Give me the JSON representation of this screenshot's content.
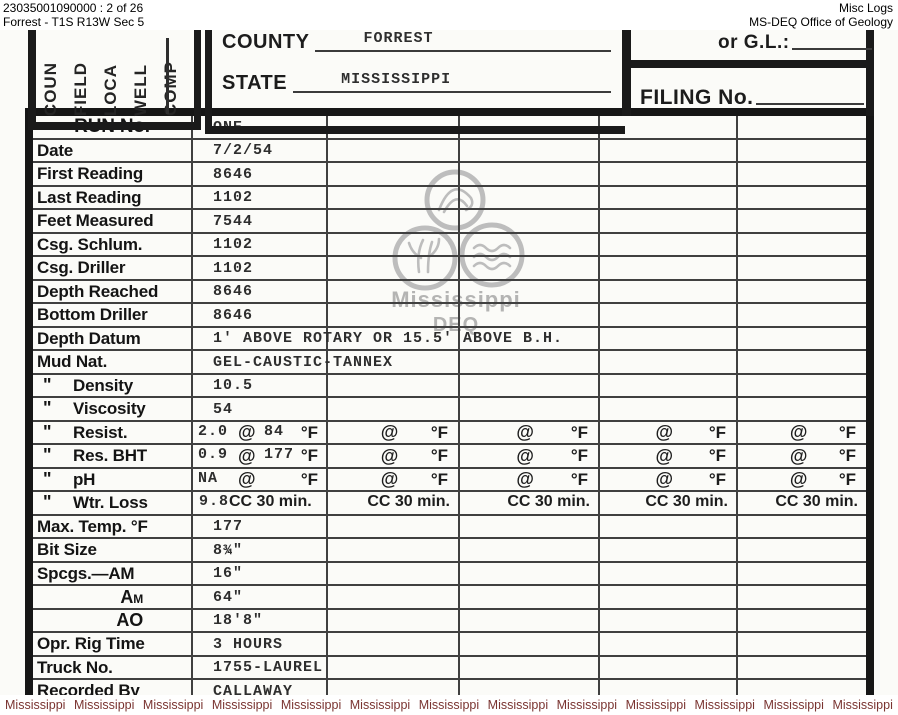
{
  "header": {
    "id_line": "23035001090000 : 2 of 26",
    "location_line": "Forrest - T1S R13W Sec 5",
    "right_line1": "Misc Logs",
    "right_line2": "MS-DEQ Office of Geology"
  },
  "form_top": {
    "vertical_labels": [
      "COUN",
      "FIELD",
      "LOCA",
      "WELL",
      "COMP"
    ],
    "county_label": "COUNTY",
    "county_value": "FORREST",
    "state_label": "STATE",
    "state_value": "MISSISSIPPI",
    "or_gl_label": "or G.L.:",
    "filing_label": "FILING No."
  },
  "watermark": {
    "line1": "Mississippi",
    "line2": "DEQ"
  },
  "table": {
    "at_symbol": "@",
    "deg_f": "°F",
    "cc_label": "CC 30 min.",
    "quote_mark": "\"",
    "rows": [
      {
        "label": "RUN No.",
        "center": true,
        "value": "ONE"
      },
      {
        "label": "Date",
        "value": "7/2/54"
      },
      {
        "label": "First Reading",
        "value": "8646"
      },
      {
        "label": "Last Reading",
        "value": "1102"
      },
      {
        "label": "Feet Measured",
        "value": "7544"
      },
      {
        "label": "Csg. Schlum.",
        "value": "1102"
      },
      {
        "label": "Csg. Driller",
        "value": "1102"
      },
      {
        "label": "Depth Reached",
        "value": "8646"
      },
      {
        "label": "Bottom Driller",
        "value": "8646"
      },
      {
        "label": "Depth Datum",
        "value": "1' ABOVE ROTARY OR 15.5' ABOVE B.H.",
        "span": true
      },
      {
        "label": "Mud Nat.",
        "value": "GEL-CAUSTIC-TANNEX",
        "span": true
      },
      {
        "label": "Density",
        "quote": true,
        "value": "10.5"
      },
      {
        "label": "Viscosity",
        "quote": true,
        "value": "54"
      },
      {
        "label": "Resist.",
        "quote": true,
        "type": "at",
        "pre": "2.0",
        "mid": "84"
      },
      {
        "label": "Res. BHT",
        "quote": true,
        "type": "at",
        "pre": "0.9",
        "mid": "177"
      },
      {
        "label": "pH",
        "quote": true,
        "type": "at",
        "pre": "NA",
        "mid": ""
      },
      {
        "label": "Wtr. Loss",
        "quote": true,
        "type": "cc",
        "pre": "9.8"
      },
      {
        "label": "Max. Temp. °F",
        "value": "177"
      },
      {
        "label": "Bit Size",
        "value": "8¾\""
      },
      {
        "label": "Spcgs.—AM",
        "value": "16\""
      },
      {
        "label": "AM",
        "indent": true,
        "am": true,
        "value": "64\""
      },
      {
        "label": "AO",
        "indent": true,
        "value": "18'8\""
      },
      {
        "label": "Opr. Rig Time",
        "value": "3 HOURS"
      },
      {
        "label": "Truck No.",
        "value": "1755-LAUREL"
      },
      {
        "label": "Recorded By",
        "value": "CALLAWAY"
      }
    ]
  },
  "footer": {
    "word": "Mississippi",
    "count": 13
  }
}
